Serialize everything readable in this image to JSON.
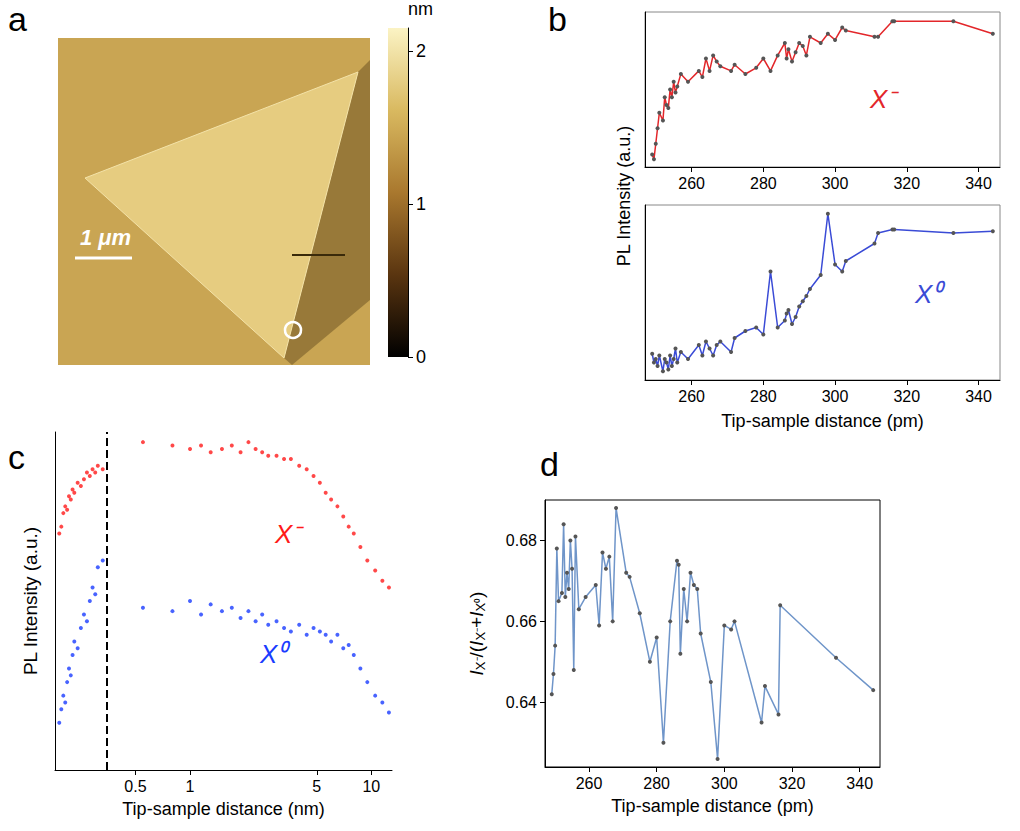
{
  "chart_data": [
    {
      "label": "a",
      "type": "image",
      "scale_bar": "1 μm",
      "colorbar": {
        "label": "nm",
        "range": [
          0,
          2.15
        ],
        "ticks": [
          0,
          1,
          2
        ]
      }
    },
    {
      "label": "b",
      "type": "line",
      "marker": "circle",
      "tick_labels": "x",
      "xlabel": "Tip-sample distance (pm)",
      "ylabel": "PL Intensity (a.u.)",
      "xlim": [
        247,
        346
      ],
      "xticks": [
        260,
        280,
        300,
        320,
        340
      ],
      "x": [
        249,
        249.5,
        250,
        250.5,
        251,
        252,
        252.5,
        253,
        253.5,
        254,
        254.5,
        255,
        255.5,
        256,
        257,
        259,
        262,
        263,
        264,
        265,
        266,
        267,
        268,
        271,
        272,
        275,
        278,
        280,
        282,
        284,
        286,
        286.5,
        287,
        288,
        289,
        290,
        291,
        292,
        293,
        296,
        298,
        300,
        302,
        303,
        311,
        312,
        316,
        316.5,
        333,
        344
      ],
      "panels": [
        {
          "ylim": [
            0,
            1
          ],
          "series": [
            {
              "name": "X⁻",
              "color": "#e3262a",
              "values": [
                0.08,
                0.05,
                0.15,
                0.25,
                0.35,
                0.3,
                0.45,
                0.4,
                0.38,
                0.5,
                0.45,
                0.55,
                0.48,
                0.52,
                0.6,
                0.55,
                0.62,
                0.58,
                0.7,
                0.62,
                0.72,
                0.68,
                0.65,
                0.62,
                0.66,
                0.6,
                0.64,
                0.7,
                0.62,
                0.72,
                0.8,
                0.7,
                0.76,
                0.68,
                0.74,
                0.8,
                0.78,
                0.72,
                0.84,
                0.8,
                0.86,
                0.82,
                0.9,
                0.88,
                0.84,
                0.84,
                0.94,
                0.94,
                0.94,
                0.86
              ]
            }
          ]
        },
        {
          "ylim": [
            0,
            1
          ],
          "series": [
            {
              "name": "X⁰",
              "color": "#3a4bd6",
              "values": [
                0.15,
                0.1,
                0.12,
                0.08,
                0.14,
                0.05,
                0.12,
                0.1,
                0.06,
                0.14,
                0.08,
                0.12,
                0.18,
                0.1,
                0.16,
                0.12,
                0.2,
                0.14,
                0.22,
                0.18,
                0.14,
                0.2,
                0.22,
                0.16,
                0.24,
                0.28,
                0.3,
                0.26,
                0.62,
                0.3,
                0.34,
                0.38,
                0.4,
                0.32,
                0.36,
                0.42,
                0.45,
                0.48,
                0.52,
                0.6,
                0.95,
                0.66,
                0.62,
                0.68,
                0.78,
                0.84,
                0.86,
                0.86,
                0.84,
                0.85
              ]
            }
          ]
        }
      ]
    },
    {
      "label": "c",
      "type": "scatter",
      "marker": "circle",
      "log": "x",
      "tick_labels": "x",
      "xlabel": "Tip-sample distance (nm)",
      "ylabel": "PL Intensity (a.u.)",
      "xlim": [
        0.18,
        13
      ],
      "xticks": [
        0.5,
        1,
        5,
        10
      ],
      "ylim": [
        0,
        1
      ],
      "divider": {
        "x": 0.35,
        "line_style": "dashed"
      },
      "x": [
        0.19,
        0.195,
        0.2,
        0.205,
        0.21,
        0.215,
        0.22,
        0.225,
        0.23,
        0.24,
        0.25,
        0.26,
        0.27,
        0.28,
        0.29,
        0.3,
        0.31,
        0.33,
        0.55,
        0.8,
        1,
        1.15,
        1.3,
        1.5,
        1.7,
        1.9,
        2.1,
        2.3,
        2.5,
        2.7,
        3,
        3.3,
        3.6,
        4,
        4.4,
        4.8,
        5.2,
        5.6,
        6,
        6.5,
        7,
        7.5,
        8,
        8.7,
        9.5,
        10.5,
        11.5,
        12.5
      ],
      "series": [
        {
          "name": "X⁻",
          "color": "#ff1a1a",
          "values": [
            0.7,
            0.72,
            0.76,
            0.78,
            0.77,
            0.81,
            0.8,
            0.83,
            0.82,
            0.85,
            0.84,
            0.86,
            0.88,
            0.87,
            0.89,
            0.88,
            0.9,
            0.89,
            0.97,
            0.96,
            0.95,
            0.96,
            0.94,
            0.95,
            0.96,
            0.94,
            0.97,
            0.95,
            0.94,
            0.93,
            0.93,
            0.92,
            0.92,
            0.9,
            0.89,
            0.87,
            0.85,
            0.82,
            0.8,
            0.78,
            0.75,
            0.72,
            0.7,
            0.66,
            0.62,
            0.59,
            0.56,
            0.54
          ]
        },
        {
          "name": "X⁰",
          "color": "#1a3cff",
          "values": [
            0.14,
            0.18,
            0.22,
            0.2,
            0.26,
            0.3,
            0.28,
            0.34,
            0.38,
            0.36,
            0.42,
            0.46,
            0.44,
            0.5,
            0.54,
            0.52,
            0.6,
            0.62,
            0.48,
            0.47,
            0.5,
            0.46,
            0.49,
            0.47,
            0.48,
            0.45,
            0.47,
            0.44,
            0.46,
            0.43,
            0.44,
            0.42,
            0.41,
            0.43,
            0.4,
            0.42,
            0.41,
            0.4,
            0.38,
            0.4,
            0.36,
            0.37,
            0.34,
            0.3,
            0.26,
            0.22,
            0.2,
            0.17
          ]
        }
      ]
    },
    {
      "label": "d",
      "type": "line",
      "marker": "circle",
      "xlabel": "Tip-sample distance (pm)",
      "ylabel": "IX⁻/(IX⁻+IX⁰)",
      "xlim": [
        247,
        346
      ],
      "xticks": [
        260,
        280,
        300,
        320,
        340
      ],
      "ylim": [
        0.624,
        0.69
      ],
      "yticks": [
        0.64,
        0.66,
        0.68
      ],
      "color": "#6f95c9",
      "x": [
        249,
        249.5,
        250,
        250.5,
        251,
        252,
        252.5,
        253,
        253.5,
        254,
        254.5,
        255,
        255.5,
        256,
        257,
        259,
        262,
        263,
        264,
        265,
        266,
        267,
        268,
        271,
        272,
        275,
        278,
        280,
        282,
        284,
        286,
        286.5,
        287,
        288,
        289,
        290,
        291,
        292,
        293,
        296,
        298,
        300,
        302,
        303,
        311,
        312,
        316,
        316.5,
        333,
        344
      ],
      "values": [
        0.642,
        0.647,
        0.654,
        0.678,
        0.665,
        0.667,
        0.684,
        0.666,
        0.672,
        0.668,
        0.68,
        0.673,
        0.648,
        0.681,
        0.663,
        0.666,
        0.669,
        0.659,
        0.677,
        0.673,
        0.676,
        0.66,
        0.688,
        0.672,
        0.671,
        0.662,
        0.65,
        0.656,
        0.63,
        0.66,
        0.675,
        0.674,
        0.652,
        0.668,
        0.66,
        0.672,
        0.669,
        0.668,
        0.657,
        0.645,
        0.626,
        0.659,
        0.658,
        0.66,
        0.635,
        0.644,
        0.637,
        0.664,
        0.651,
        0.643
      ]
    }
  ]
}
